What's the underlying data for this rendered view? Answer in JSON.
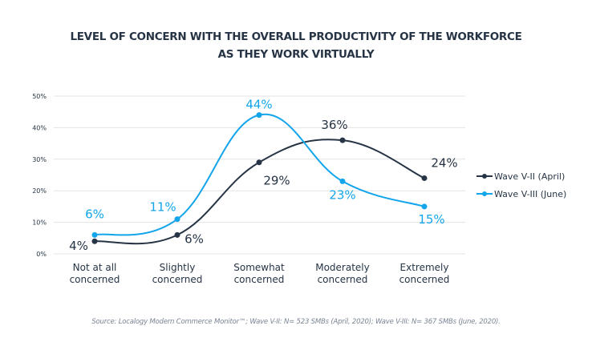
{
  "chart_data": {
    "type": "line",
    "title_line1": "LEVEL OF CONCERN  WITH THE OVERALL PRODUCTIVITY OF THE WORKFORCE",
    "title_line2": "AS THEY WORK VIRTUALLY",
    "categories": [
      [
        "Not at all",
        "concerned"
      ],
      [
        "Slightly",
        "concerned"
      ],
      [
        "Somewhat",
        "concerned"
      ],
      [
        "Moderately",
        "concerned"
      ],
      [
        "Extremely",
        "concerned"
      ]
    ],
    "y_ticks": [
      "0%",
      "10%",
      "20%",
      "30%",
      "40%",
      "50%"
    ],
    "ylim": [
      0,
      50
    ],
    "grid": true,
    "legend_position": "right",
    "series": [
      {
        "name": "Wave V-II (April)",
        "color": "#263445",
        "values": [
          4,
          6,
          29,
          36,
          24
        ],
        "labels": [
          "4%",
          "6%",
          "29%",
          "36%",
          "24%"
        ]
      },
      {
        "name": "Wave V-III (June)",
        "color": "#13a5eb",
        "values": [
          6,
          11,
          44,
          23,
          15
        ],
        "labels": [
          "6%",
          "11%",
          "44%",
          "23%",
          "15%"
        ]
      }
    ],
    "source": "Source: Localogy Modern Commerce Monitor™; Wave V-II: N= 523 SMBs (April, 2020); Wave V-III: N= 367 SMBs (June, 2020)."
  }
}
